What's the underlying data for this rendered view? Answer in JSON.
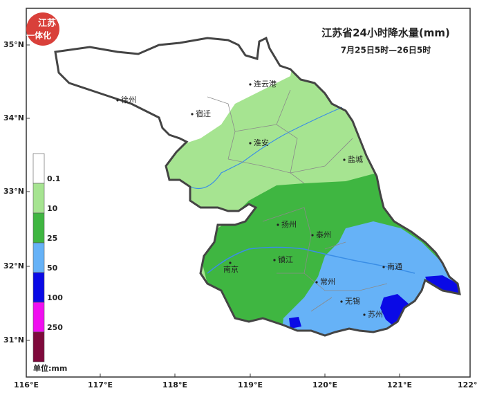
{
  "title": "江苏省24小时降水量(mm)",
  "subtitle": "7月25日5时—26日5时",
  "logo": [
    "江苏",
    "一体化"
  ],
  "lon_ticks": [
    "116°E",
    "117°E",
    "118°E",
    "119°E",
    "120°E",
    "121°E",
    "122°E"
  ],
  "lat_ticks": [
    "35°N",
    "34°N",
    "33°N",
    "32°N",
    "31°N"
  ],
  "cities": [
    "徐州",
    "宿迁",
    "连云港",
    "淮安",
    "盐城",
    "扬州",
    "泰州",
    "南京",
    "镇江",
    "南通",
    "常州",
    "无锡",
    "苏州"
  ],
  "legend": {
    "labels": [
      "0.1",
      "10",
      "25",
      "50",
      "100",
      "250"
    ],
    "colors": [
      "#ffffff",
      "#a6e491",
      "#3fb641",
      "#66b2f7",
      "#0a0ae6",
      "#f00ff0",
      "#7f0a3c"
    ],
    "unit": "单位:mm"
  }
}
